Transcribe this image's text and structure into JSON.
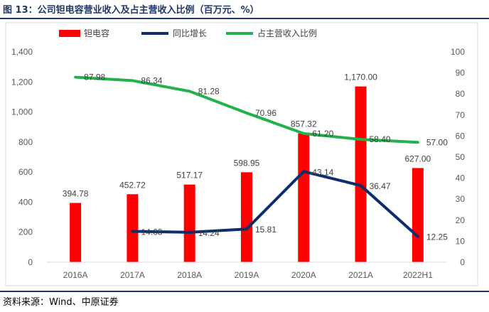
{
  "header": {
    "title": "图 13：公司钽电容营业收入及占主营收入比例（百万元、%）"
  },
  "footer": {
    "source": "资料来源：Wind、中原证券"
  },
  "colors": {
    "bar": "#ff0000",
    "yoy": "#0d2d6c",
    "share": "#22b24c",
    "axis": "#d9d9d9",
    "text": "#595959",
    "rule": "#1f3864"
  },
  "chart_data": {
    "type": "bar",
    "title": "",
    "categories": [
      "2016A",
      "2017A",
      "2018A",
      "2019A",
      "2020A",
      "2021A",
      "2022H1"
    ],
    "left_axis": {
      "ylim": [
        0,
        1400
      ],
      "ticks": [
        "0",
        "200",
        "400",
        "600",
        "800",
        "1,000",
        "1,200",
        "1,400"
      ]
    },
    "right_axis": {
      "ylim": [
        0,
        100
      ],
      "ticks": [
        "0",
        "10",
        "20",
        "30",
        "40",
        "50",
        "60",
        "70",
        "80",
        "90",
        "100"
      ]
    },
    "legend_position": "top",
    "series": [
      {
        "name": "钽电容",
        "type": "bar",
        "axis": "left",
        "values": [
          394.78,
          452.72,
          517.17,
          598.95,
          857.32,
          1170.0,
          627.0
        ],
        "labels": [
          "394.78",
          "452.72",
          "517.17",
          "598.95",
          "857.32",
          "1,170.00",
          "627.00"
        ]
      },
      {
        "name": "同比增长",
        "type": "line",
        "axis": "right",
        "values": [
          null,
          14.68,
          14.24,
          15.81,
          43.14,
          36.47,
          12.25
        ],
        "labels": [
          "",
          "14.68",
          "14.24",
          "15.81",
          "43.14",
          "36.47",
          "12.25"
        ]
      },
      {
        "name": "占主营收入比例",
        "type": "line",
        "axis": "right",
        "values": [
          87.98,
          86.34,
          81.28,
          70.96,
          61.2,
          58.4,
          57.0
        ],
        "labels": [
          "87.98",
          "86.34",
          "81.28",
          "70.96",
          "61.20",
          "58.40",
          "57.00"
        ]
      }
    ]
  }
}
